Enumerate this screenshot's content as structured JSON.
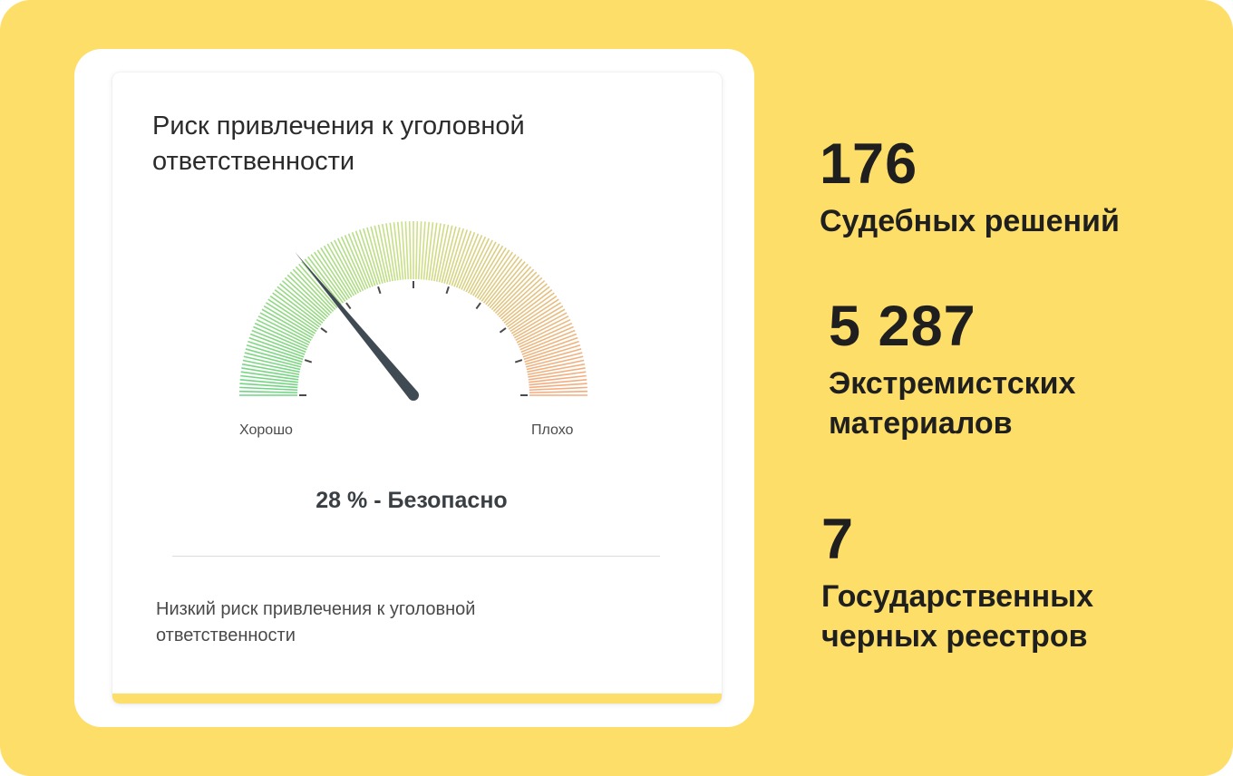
{
  "card": {
    "title": "Риск привлечения к уголовной ответственности",
    "gauge": {
      "left_label": "Хорошо",
      "right_label": "Плохо",
      "value_percent": 28,
      "value_text": "28 % - Безопасно",
      "colors": {
        "good": "#5fcf76",
        "mid": "#c8dc7a",
        "bad": "#f5a170",
        "needle": "#3f4a52"
      }
    },
    "description": "Низкий риск привлечения к уголовной ответственности"
  },
  "stats": [
    {
      "number": "176",
      "label": "Судебных решений"
    },
    {
      "number": "5 287",
      "label": "Экстремистских материалов"
    },
    {
      "number": "7",
      "label": "Государственных черных реестров"
    }
  ],
  "colors": {
    "background": "#fcde68",
    "card": "#ffffff",
    "text": "#1f1f1f"
  }
}
